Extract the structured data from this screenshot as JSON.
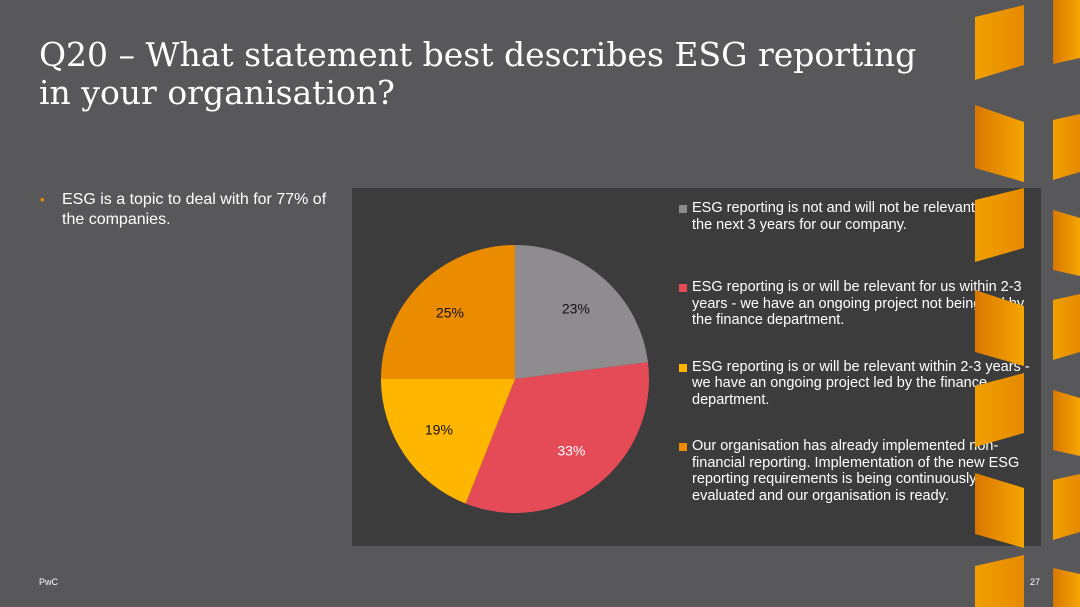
{
  "slide": {
    "title_line1": "Q20 – What statement best describes ESG reporting",
    "title_line2": "in your organisation?",
    "bullets": [
      "ESG is a topic to deal with for 77% of the companies."
    ],
    "footer_left": "PwC",
    "page_number": "27"
  },
  "colors": {
    "background": "#58585a",
    "panel": "#3c3c3c",
    "accent": "#eb8c00"
  },
  "chart_data": {
    "type": "pie",
    "title": "",
    "start_angle_deg": 0,
    "direction": "clockwise",
    "series": [
      {
        "values": [
          23,
          33,
          19,
          25
        ],
        "labels": [
          "23%",
          "33%",
          "19%",
          "25%"
        ],
        "categories": [
          "ESG reporting is not and will not be relevant within the next 3 years for our company.",
          "ESG reporting is or will be relevant for us within 2-3 years - we have an ongoing project not being led by the finance department.",
          "ESG reporting is or will be relevant within 2-3 years - we have an ongoing project led by the finance department.",
          "Our organisation has already implemented non-financial reporting. Implementation of the new ESG reporting requirements is being continuously evaluated and our organisation is ready."
        ],
        "colors": [
          "#8e8c8f",
          "#e44b56",
          "#ffb600",
          "#eb8c00"
        ]
      }
    ],
    "legend_position": "right"
  }
}
